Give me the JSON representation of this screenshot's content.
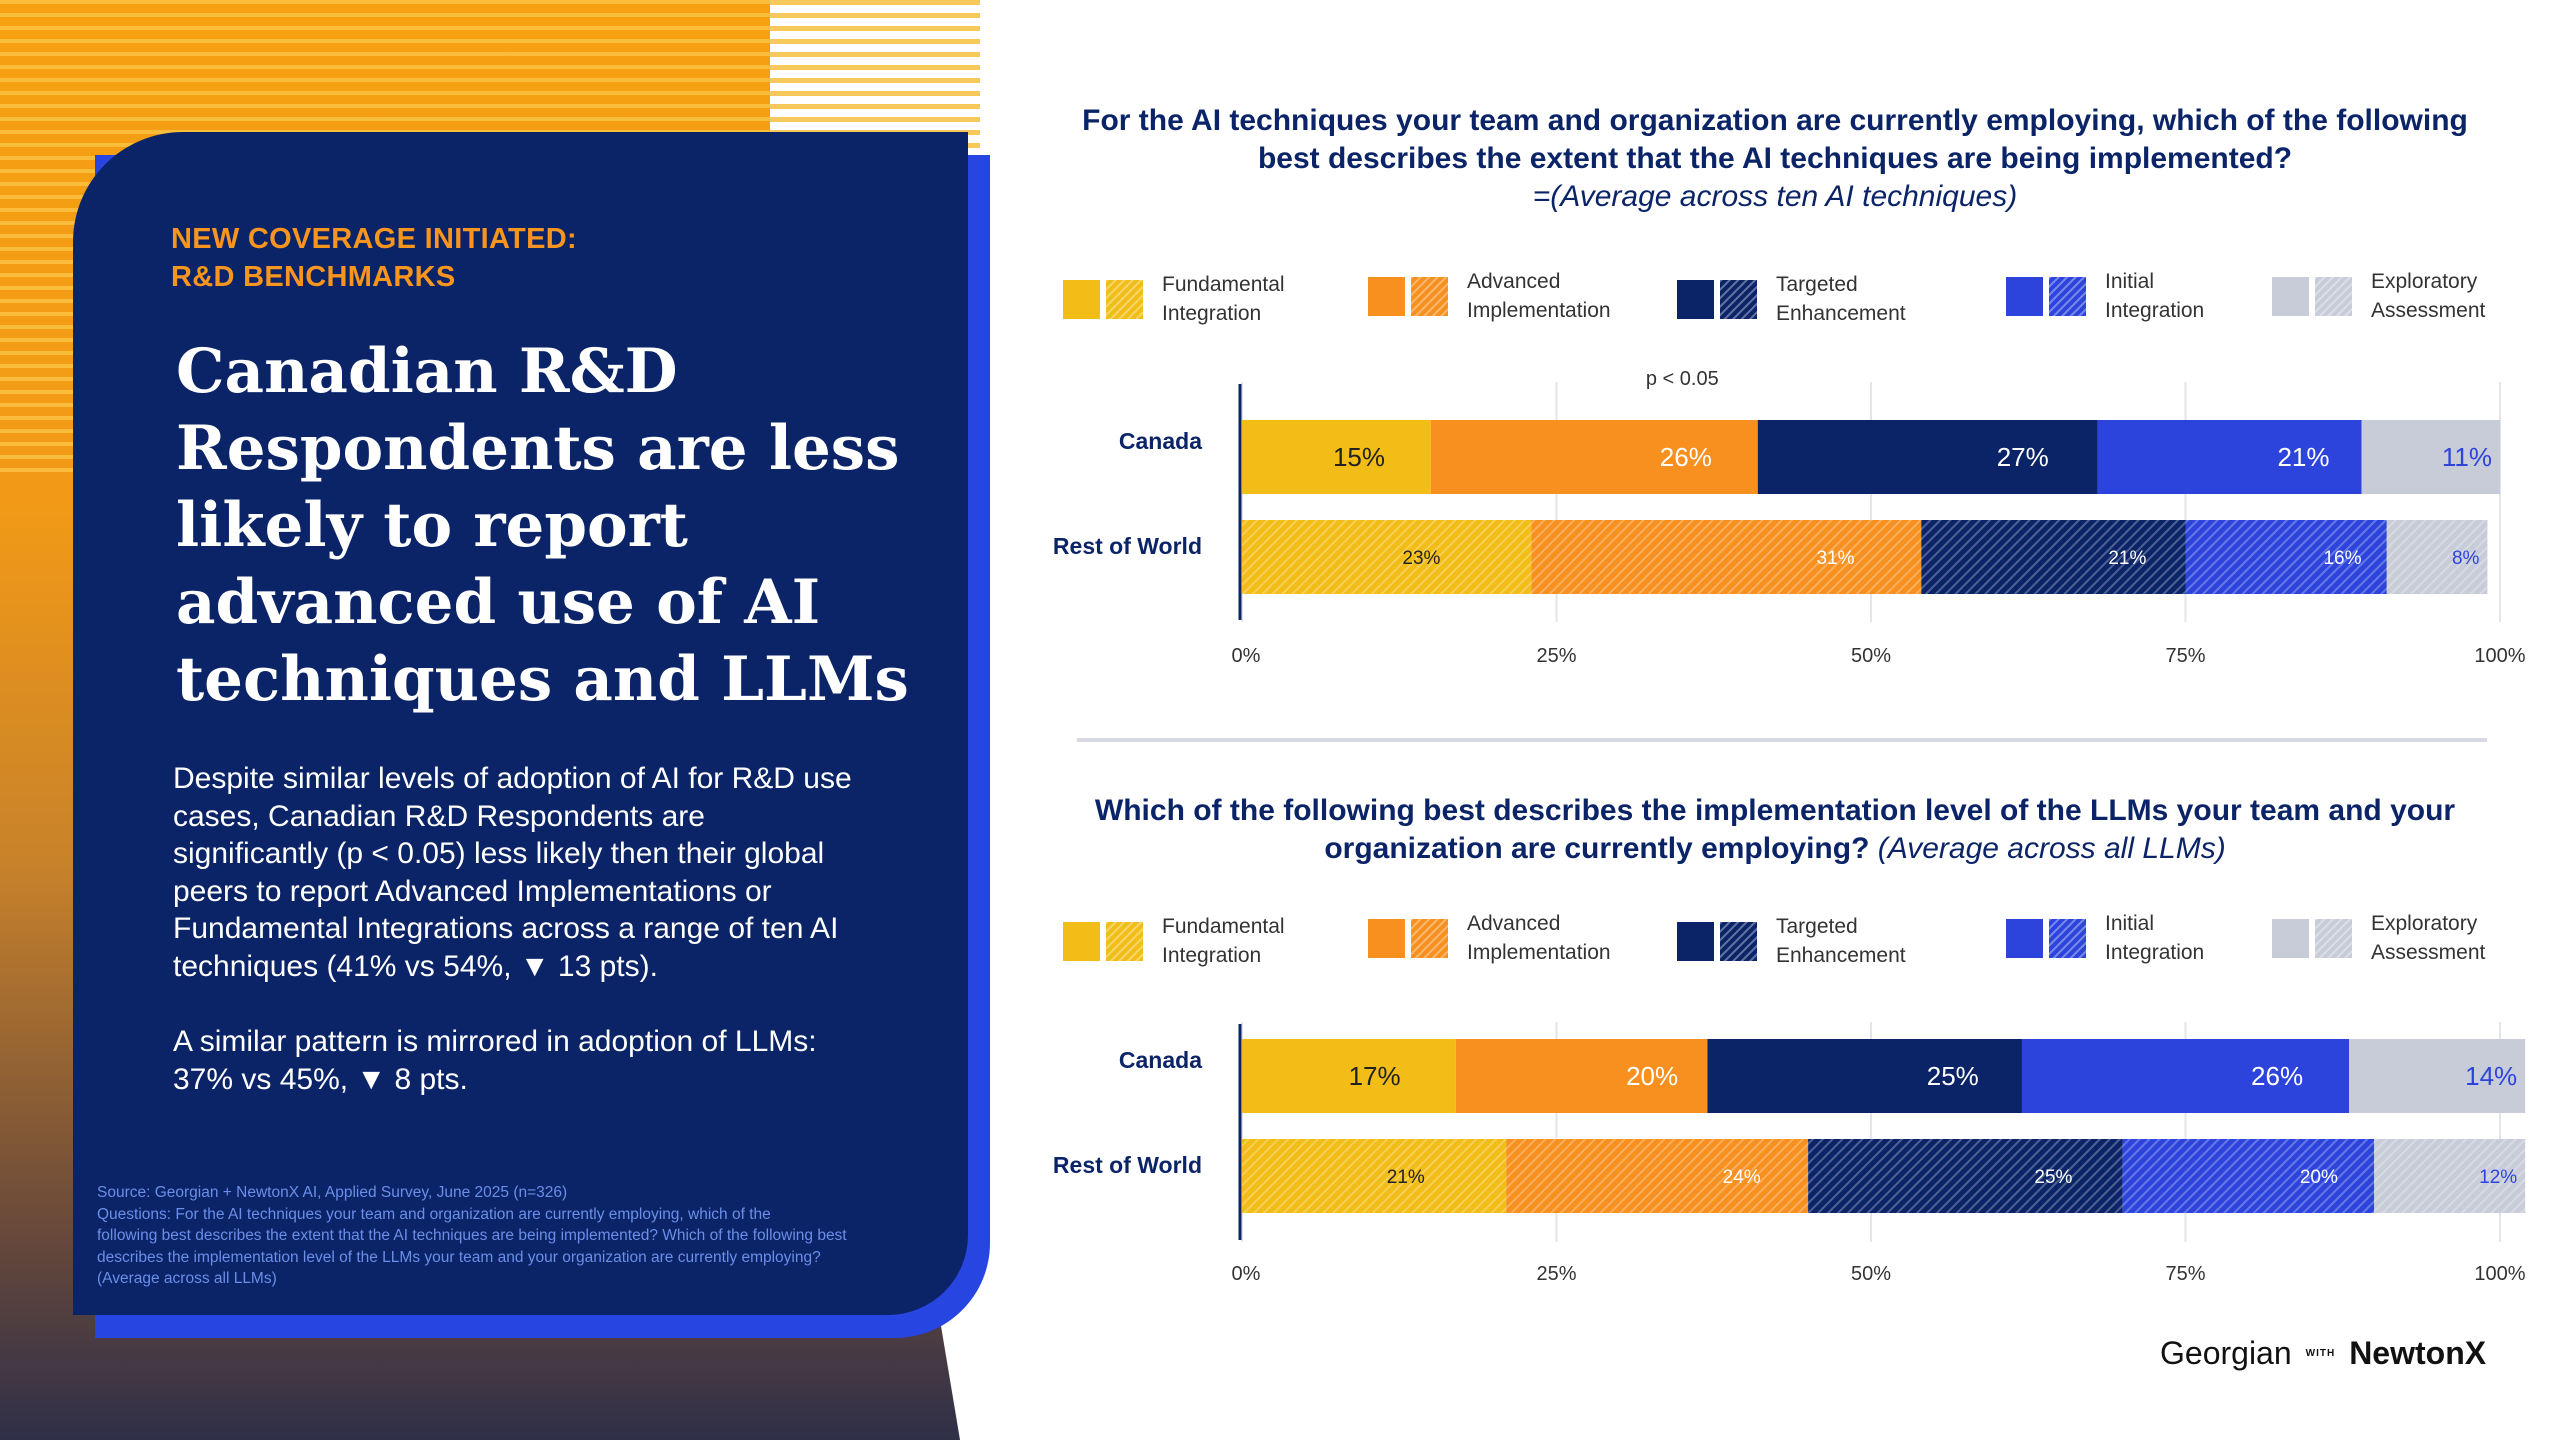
{
  "left": {
    "kicker_line1": "NEW COVERAGE INITIATED:",
    "kicker_line2": "R&D BENCHMARKS",
    "headline_lines": [
      "Canadian R&D",
      "Respondents are less",
      "likely to report",
      "advanced use of AI",
      "techniques and LLMs"
    ],
    "paragraph1_lines": [
      "Despite similar levels of adoption of AI for R&D use",
      "cases, Canadian R&D Respondents are",
      "significantly (p < 0.05) less likely then their global",
      "peers to report Advanced Implementations or",
      "Fundamental Integrations across a range of ten AI",
      "techniques (41% vs 54%, ▼ 13 pts)."
    ],
    "paragraph2_lines": [
      "A similar pattern is mirrored in adoption of LLMs:",
      "37% vs 45%, ▼ 8 pts."
    ],
    "source_lines": [
      "Source: Georgian + NewtonX AI, Applied Survey, June 2025 (n=326)",
      "Questions: For the AI techniques your team and organization are currently employing, which of the",
      "following best describes the extent that the AI techniques are being implemented? Which of the following best",
      "describes the implementation level of the LLMs your team and your organization are currently employing?",
      "(Average across all LLMs)"
    ]
  },
  "legend": [
    {
      "line1": "Fundamental",
      "line2": "Integration",
      "color": "#f2bd16"
    },
    {
      "line1": "Advanced",
      "line2": "Implementation",
      "color": "#f7901e"
    },
    {
      "line1": "Targeted",
      "line2": "Enhancement",
      "color": "#0b2468"
    },
    {
      "line1": "Initial",
      "line2": "Integration",
      "color": "#2d44dc"
    },
    {
      "line1": "Exploratory",
      "line2": "Assessment",
      "color": "#c8ccd8"
    }
  ],
  "footer": {
    "logo1": "Georgian",
    "with": "WITH",
    "logo2": "NewtonX"
  },
  "chart_data": [
    {
      "type": "bar",
      "orientation": "horizontal-stacked-100",
      "title_line1": "For the AI techniques your team and organization are currently employing, which of the following",
      "title_line2": "best describes the extent that the AI techniques are being implemented?",
      "subtitle": "=(Average across ten AI techniques)",
      "annotation": "p < 0.05",
      "categories": [
        "Canada",
        "Rest of World"
      ],
      "series": [
        {
          "name": "Fundamental Integration",
          "values": [
            15,
            23
          ],
          "labels": [
            "15%",
            "23%"
          ]
        },
        {
          "name": "Advanced Implementation",
          "values": [
            26,
            31
          ],
          "labels": [
            "26%",
            "31%"
          ]
        },
        {
          "name": "Targeted Enhancement",
          "values": [
            27,
            21
          ],
          "labels": [
            "27%",
            "21%"
          ]
        },
        {
          "name": "Initial Integration",
          "values": [
            21,
            16
          ],
          "labels": [
            "21%",
            "16%"
          ]
        },
        {
          "name": "Exploratory Assessment",
          "values": [
            11,
            8
          ],
          "labels": [
            "11%",
            "8%"
          ]
        }
      ],
      "xticks": [
        "0%",
        "25%",
        "50%",
        "75%",
        "100%"
      ],
      "xlim": [
        0,
        100
      ],
      "grid": true
    },
    {
      "type": "bar",
      "orientation": "horizontal-stacked-100",
      "title_line1": "Which of the following best describes the implementation level of the LLMs your team and your",
      "title_line2": "organization are currently employing?",
      "subtitle": "(Average across all LLMs)",
      "categories": [
        "Canada",
        "Rest of World"
      ],
      "series": [
        {
          "name": "Fundamental Integration",
          "values": [
            17,
            21
          ],
          "labels": [
            "17%",
            "21%"
          ]
        },
        {
          "name": "Advanced Implementation",
          "values": [
            20,
            24
          ],
          "labels": [
            "20%",
            "24%"
          ]
        },
        {
          "name": "Targeted Enhancement",
          "values": [
            25,
            25
          ],
          "labels": [
            "25%",
            "25%"
          ]
        },
        {
          "name": "Initial Integration",
          "values": [
            26,
            20
          ],
          "labels": [
            "26%",
            "20%"
          ]
        },
        {
          "name": "Exploratory Assessment",
          "values": [
            14,
            12
          ],
          "labels": [
            "14%",
            "12%"
          ]
        }
      ],
      "xticks": [
        "0%",
        "25%",
        "50%",
        "75%",
        "100%"
      ],
      "xlim": [
        0,
        100
      ],
      "grid": true
    }
  ]
}
